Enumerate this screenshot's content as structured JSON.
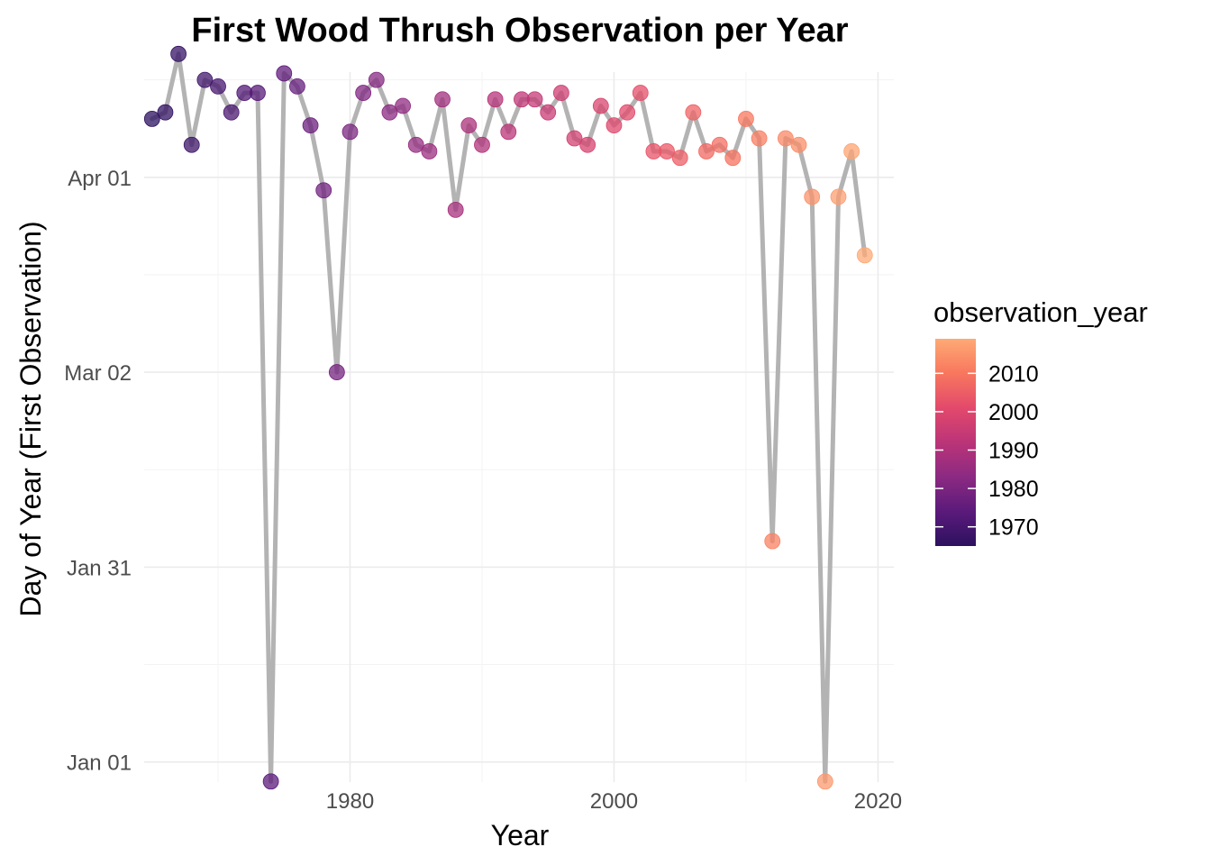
{
  "chart_data": {
    "type": "line",
    "title": "First Wood Thrush Observation per Year",
    "xlabel": "Year",
    "ylabel": "Day of Year (First Observation)",
    "xlim": [
      1964.4,
      2021.2
    ],
    "ylim": [
      -2.1,
      107.2
    ],
    "x_ticks": [
      1980,
      2000,
      2020
    ],
    "y_ticks": [
      {
        "value": 1,
        "label": "Jan 01"
      },
      {
        "value": 31,
        "label": "Jan 31"
      },
      {
        "value": 61,
        "label": "Mar 02"
      },
      {
        "value": 91,
        "label": "Apr 01"
      }
    ],
    "grid": true,
    "line_color": "#b3b3b3",
    "series": [
      {
        "x": [
          1965,
          1966,
          1967,
          1968,
          1969,
          1970,
          1971,
          1972,
          1973,
          1974,
          1975,
          1976,
          1977,
          1978,
          1979,
          1980,
          1981,
          1982,
          1983,
          1984,
          1985,
          1986,
          1987,
          1988,
          1989,
          1990,
          1991,
          1992,
          1993,
          1994,
          1995,
          1996,
          1997,
          1998,
          1999,
          2000,
          2001,
          2002,
          2003,
          2004,
          2005,
          2006,
          2007,
          2008,
          2009,
          2010,
          2011,
          2012,
          2013,
          2014,
          2015,
          2016,
          2017,
          2018,
          2019
        ],
        "y": [
          100,
          101,
          110,
          96,
          106,
          105,
          101,
          104,
          104,
          -2,
          107,
          105,
          99,
          89,
          61,
          98,
          104,
          106,
          101,
          102,
          96,
          95,
          103,
          86,
          99,
          96,
          103,
          98,
          103,
          103,
          101,
          104,
          97,
          96,
          102,
          99,
          101,
          104,
          95,
          95,
          94,
          101,
          95,
          96,
          94,
          100,
          97,
          35,
          97,
          96,
          88,
          -2,
          88,
          95,
          79
        ]
      }
    ],
    "color_scale": {
      "name": "observation_year",
      "min": 1965,
      "max": 2019,
      "stops": [
        "#2c115f",
        "#5b1a7b",
        "#8b2a82",
        "#bb3478",
        "#e3496b",
        "#f8775e",
        "#feaa75"
      ],
      "ticks": [
        1970,
        1980,
        1990,
        2000,
        2010
      ]
    }
  }
}
